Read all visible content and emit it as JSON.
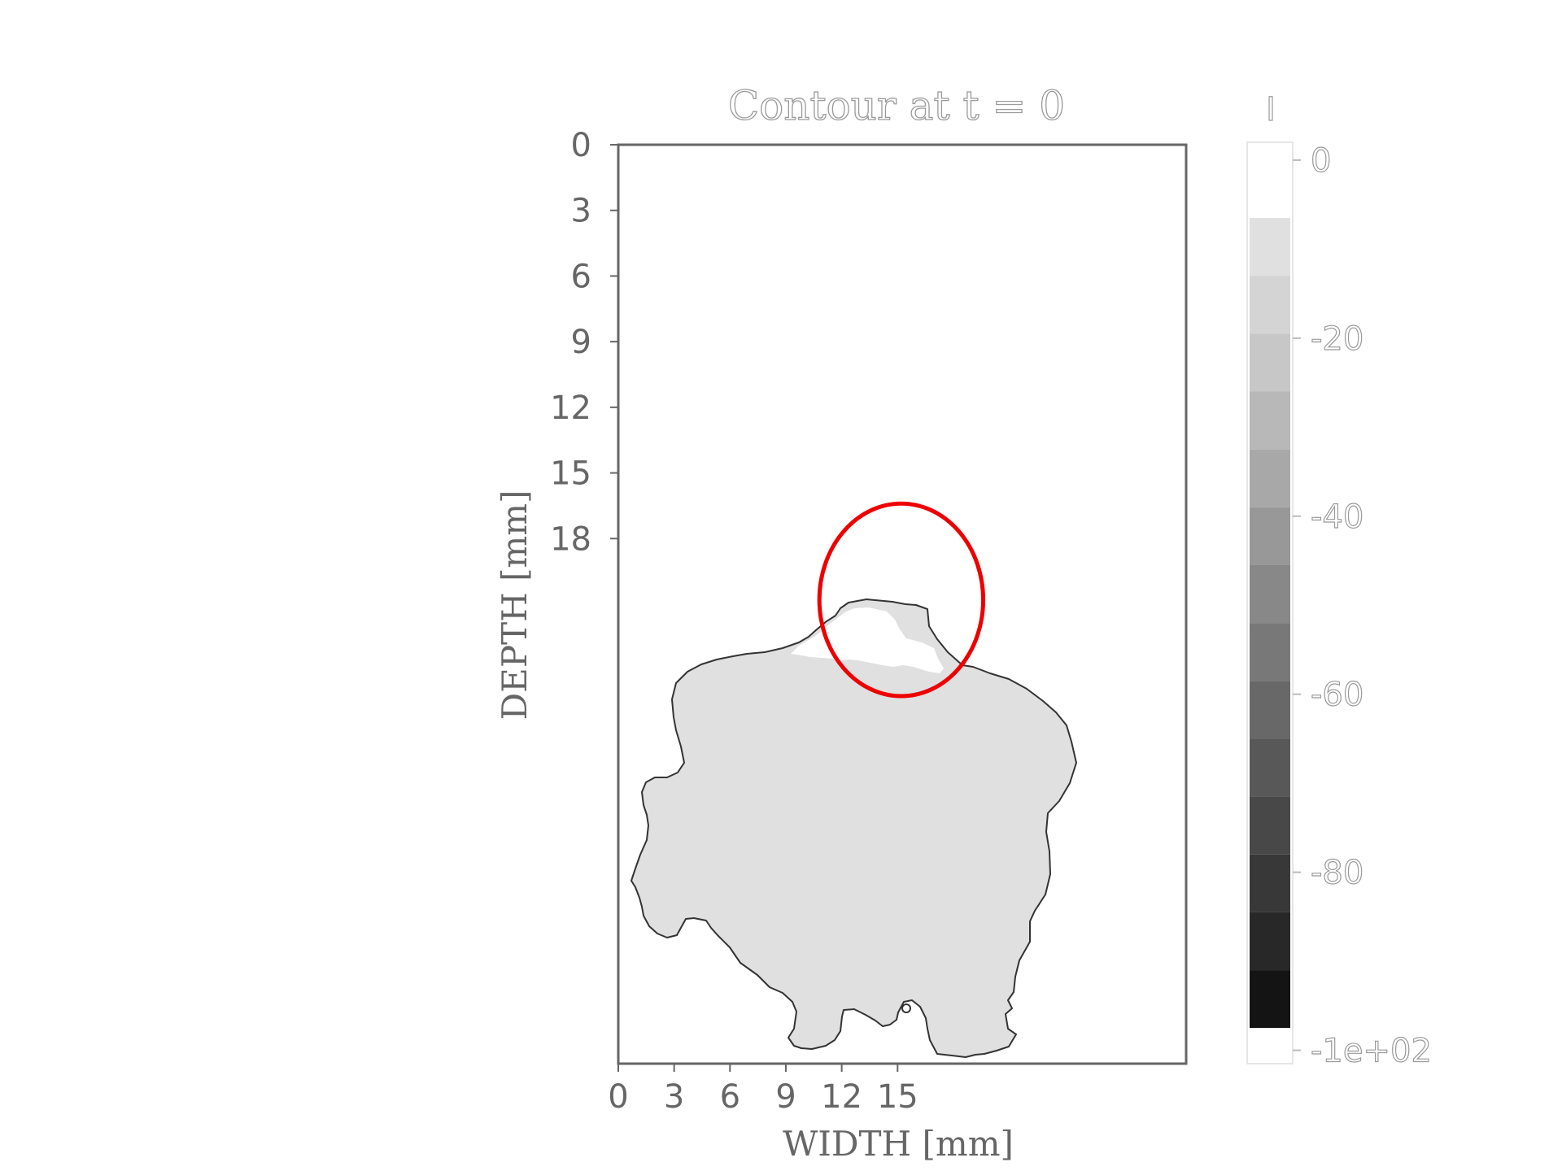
{
  "chart_data": {
    "type": "heatmap",
    "title": "Contour at t = 0",
    "xlabel": "WIDTH [mm]",
    "ylabel": "DEPTH [mm]",
    "x_ticks": [
      "0",
      "3",
      "6",
      "9",
      "12",
      "15"
    ],
    "y_ticks": [
      "0",
      "3",
      "6",
      "9",
      "12",
      "15",
      "18"
    ],
    "xlim": [
      0,
      30.5
    ],
    "ylim": [
      0,
      42
    ],
    "y_inverted": true,
    "grid": false,
    "colormap": "gray",
    "region_value": -10,
    "colorbar": {
      "title": "I",
      "tick_values": [
        0,
        -20,
        -40,
        -60,
        -80,
        -100
      ],
      "tick_labels": [
        "0",
        "-20",
        "-40",
        "-60",
        "-80",
        "-1e+02"
      ],
      "levels": [
        0,
        -6.5,
        -13,
        -19.5,
        -26,
        -32.5,
        -39,
        -45.5,
        -52,
        -58.5,
        -65,
        -71.5,
        -78,
        -84.5,
        -91,
        -97.5
      ],
      "level_colors": [
        "#ffffff",
        "#e0e0e0",
        "#d4d4d4",
        "#c7c7c7",
        "#b8b8b8",
        "#a8a8a8",
        "#989898",
        "#888888",
        "#787878",
        "#686868",
        "#585858",
        "#484848",
        "#383838",
        "#282828",
        "#141414",
        "#ffffff"
      ]
    },
    "annotation": {
      "shape": "ellipse",
      "color": "#ee0000",
      "center": [
        15.2,
        20.8
      ],
      "radius": [
        4.4,
        4.4
      ]
    }
  }
}
